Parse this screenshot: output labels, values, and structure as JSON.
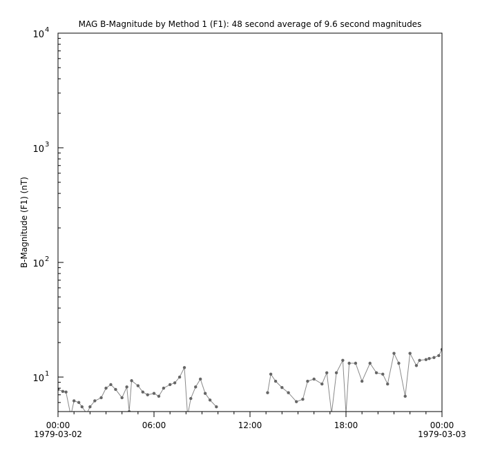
{
  "chart_data": {
    "type": "line",
    "title": "MAG  B-Magnitude by Method 1 (F1): 48 second average of 9.6 second magnitudes",
    "xlabel": "",
    "ylabel": "B-Magnitude (F1) (nT)",
    "y_scale": "log",
    "ylim": [
      5,
      10000
    ],
    "xlim": [
      "1979-03-02 00:00",
      "1979-03-03 00:00"
    ],
    "x_ticks": [
      {
        "hour": 0,
        "label": "00:00",
        "sublabel": "1979-03-02"
      },
      {
        "hour": 6,
        "label": "06:00",
        "sublabel": ""
      },
      {
        "hour": 12,
        "label": "12:00",
        "sublabel": ""
      },
      {
        "hour": 18,
        "label": "18:00",
        "sublabel": ""
      },
      {
        "hour": 24,
        "label": "00:00",
        "sublabel": "1979-03-03"
      }
    ],
    "y_ticks": [
      {
        "value": 10,
        "base": "10",
        "exp": "1"
      },
      {
        "value": 100,
        "base": "10",
        "exp": "2"
      },
      {
        "value": 1000,
        "base": "10",
        "exp": "3"
      },
      {
        "value": 10000,
        "base": "10",
        "exp": "4"
      }
    ],
    "grid": false,
    "series_color": "#666666",
    "series": [
      {
        "x_hours": [
          0,
          0.3,
          0.5,
          0.8,
          1.0,
          1.3,
          1.5,
          1.8,
          2.0,
          2.3,
          2.7,
          3.0,
          3.3,
          3.6,
          4.0,
          4.3,
          4.45,
          4.6,
          5.0,
          5.3,
          5.6,
          6.0,
          6.3,
          6.6,
          7.0,
          7.3,
          7.6,
          7.9,
          8.1,
          8.3,
          8.6,
          8.9,
          9.2,
          9.5,
          9.9,
          null,
          13.1,
          13.3,
          13.6,
          14.0,
          14.4,
          14.9,
          15.3,
          15.6,
          16.0,
          16.5,
          16.8,
          17.1,
          17.4,
          17.8,
          18.0,
          18.2,
          18.6,
          19.0,
          19.5,
          19.9,
          20.3,
          20.6,
          21.0,
          21.3,
          21.7,
          22.0,
          22.4,
          22.6,
          23.0,
          23.2,
          23.5,
          23.8,
          24.0
        ],
        "values": [
          7.8,
          7.5,
          7.4,
          4.6,
          6.2,
          6.0,
          5.5,
          4.8,
          5.5,
          6.2,
          6.6,
          8.0,
          8.6,
          7.8,
          6.6,
          8.2,
          5.0,
          9.3,
          8.4,
          7.4,
          7.0,
          7.2,
          6.8,
          8.0,
          8.6,
          8.9,
          10.0,
          12.1,
          4.6,
          6.5,
          8.2,
          9.6,
          7.2,
          6.3,
          5.5,
          null,
          7.3,
          10.6,
          9.2,
          8.1,
          7.3,
          6.1,
          6.4,
          9.2,
          9.6,
          8.7,
          10.9,
          4.8,
          10.9,
          14.0,
          4.8,
          13.2,
          13.2,
          9.2,
          13.2,
          10.9,
          10.6,
          8.7,
          16.1,
          13.2,
          6.8,
          16.1,
          12.6,
          14.0,
          14.2,
          14.5,
          14.8,
          15.4,
          17.4
        ]
      }
    ]
  }
}
